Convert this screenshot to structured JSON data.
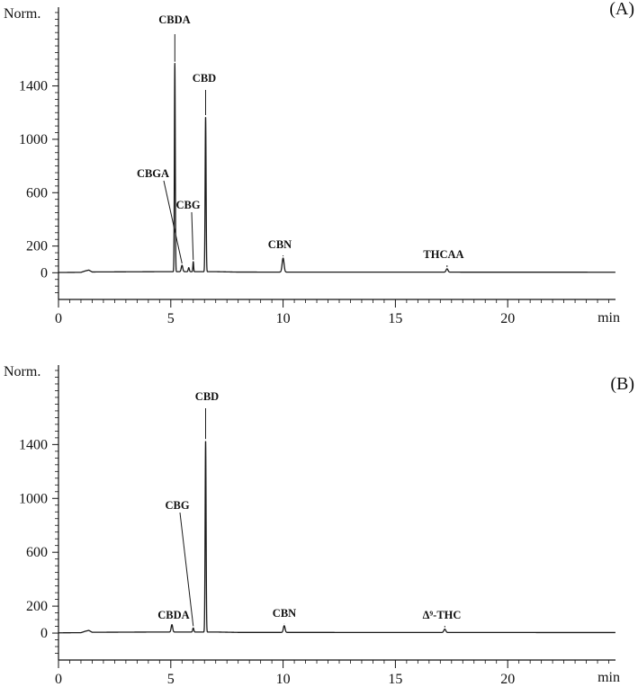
{
  "chart_data": [
    {
      "type": "line",
      "panel_label": "(A)",
      "ylabel": "Norm.",
      "xunit_label": "min",
      "xlim": [
        0,
        24.8
      ],
      "ylim": [
        -200,
        1990
      ],
      "x_ticks": [
        "0",
        "5",
        "10",
        "15",
        "20"
      ],
      "y_ticks": [
        "0",
        "200",
        "600",
        "1000",
        "1400"
      ],
      "baseline": [
        [
          0,
          2
        ],
        [
          1.0,
          3
        ],
        [
          1.2,
          14
        ],
        [
          1.35,
          20
        ],
        [
          1.5,
          6
        ],
        [
          4.6,
          8
        ],
        [
          7.0,
          8
        ],
        [
          8.0,
          5
        ],
        [
          24.8,
          4
        ]
      ],
      "peaks": [
        {
          "name": "CBGA",
          "label": "CBGA",
          "rt": 5.5,
          "height": 48,
          "width": 0.08
        },
        {
          "name": "CBDA",
          "label": "CBDA",
          "rt": 5.18,
          "height": 1560,
          "width": 0.045
        },
        {
          "name": "CBG",
          "label": "CBG",
          "rt": 6.0,
          "height": 75,
          "width": 0.04
        },
        {
          "name": "CBD",
          "label": "CBD",
          "rt": 6.55,
          "height": 1160,
          "width": 0.05
        },
        {
          "name": "unlabeled",
          "label": "",
          "rt": 5.8,
          "height": 30,
          "width": 0.06
        },
        {
          "name": "CBN",
          "label": "CBN",
          "rt": 10.0,
          "height": 105,
          "width": 0.1
        },
        {
          "name": "THCAA",
          "label": "THCAA",
          "rt": 17.3,
          "height": 25,
          "width": 0.1
        }
      ]
    },
    {
      "type": "line",
      "panel_label": "(B)",
      "ylabel": "Norm.",
      "xunit_label": "min",
      "xlim": [
        0,
        24.8
      ],
      "ylim": [
        -200,
        1990
      ],
      "x_ticks": [
        "0",
        "5",
        "10",
        "15",
        "20"
      ],
      "y_ticks": [
        "0",
        "200",
        "600",
        "1000",
        "1400"
      ],
      "baseline": [
        [
          0,
          2
        ],
        [
          1.0,
          3
        ],
        [
          1.2,
          14
        ],
        [
          1.35,
          20
        ],
        [
          1.5,
          6
        ],
        [
          4.6,
          8
        ],
        [
          7.0,
          8
        ],
        [
          8.0,
          5
        ],
        [
          24.8,
          4
        ]
      ],
      "peaks": [
        {
          "name": "CBDA",
          "label": "CBDA",
          "rt": 5.05,
          "height": 55,
          "width": 0.08
        },
        {
          "name": "CBG",
          "label": "CBG",
          "rt": 6.0,
          "height": 30,
          "width": 0.06
        },
        {
          "name": "CBD",
          "label": "CBD",
          "rt": 6.55,
          "height": 1420,
          "width": 0.05
        },
        {
          "name": "CBN",
          "label": "CBN",
          "rt": 10.05,
          "height": 50,
          "width": 0.09
        },
        {
          "name": "delta9-THC",
          "label": "Δ⁹-THC",
          "rt": 17.2,
          "height": 25,
          "width": 0.1
        }
      ]
    }
  ]
}
